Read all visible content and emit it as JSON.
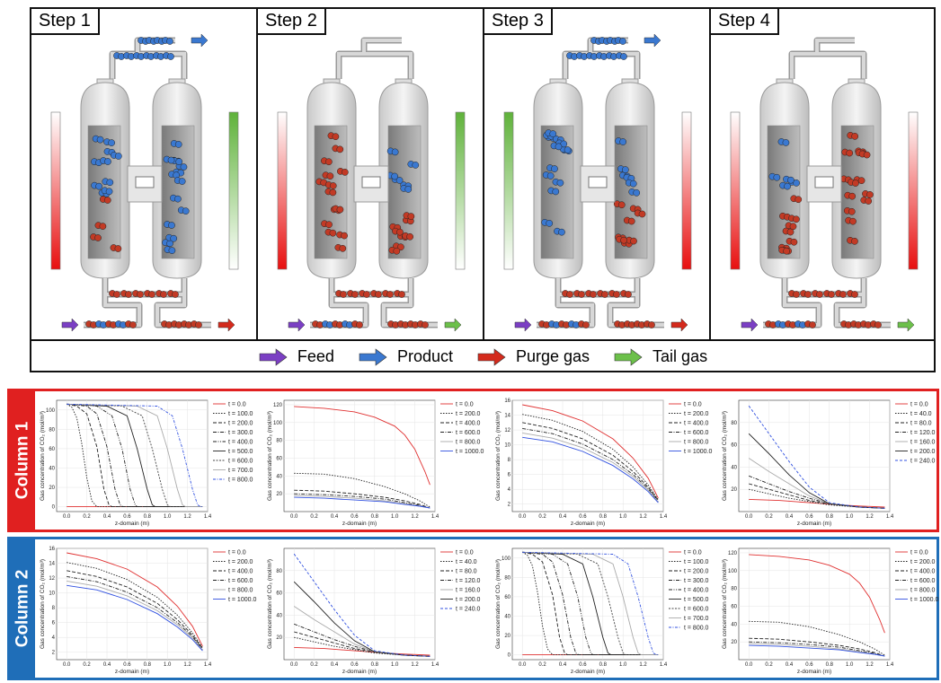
{
  "steps": [
    {
      "label": "Step 1",
      "left_bar": "red",
      "right_bar": "green",
      "product_top": true,
      "bottom_right_arrow": "red",
      "left_fill": "mixed",
      "right_fill": "blue"
    },
    {
      "label": "Step 2",
      "left_bar": "red",
      "right_bar": "green",
      "product_top": false,
      "bottom_right_arrow": "green",
      "left_fill": "red",
      "right_fill": "mixed"
    },
    {
      "label": "Step 3",
      "left_bar": "green",
      "right_bar": "red",
      "product_top": true,
      "bottom_right_arrow": "red",
      "left_fill": "blue",
      "right_fill": "mixed"
    },
    {
      "label": "Step 4",
      "left_bar": "red",
      "right_bar": "red",
      "product_top": false,
      "bottom_right_arrow": "green",
      "left_fill": "mixed",
      "right_fill": "red"
    }
  ],
  "legend": [
    {
      "label": "Feed",
      "color": "#7b3fc4"
    },
    {
      "label": "Product",
      "color": "#3a78d0"
    },
    {
      "label": "Purge gas",
      "color": "#d42a1c"
    },
    {
      "label": "Tail gas",
      "color": "#6cc04a"
    }
  ],
  "columns": [
    {
      "label": "Column 1",
      "color": "#e02020",
      "plots": [
        "p_breakthrough",
        "p_purge_high",
        "p_decay_low",
        "p_desorb"
      ]
    },
    {
      "label": "Column 2",
      "color": "#1f6eb8",
      "plots": [
        "p_decay_low",
        "p_desorb",
        "p_breakthrough",
        "p_purge_high"
      ]
    }
  ],
  "chart_data": [
    {
      "id": "p_breakthrough",
      "type": "line",
      "xlabel": "z-domain (m)",
      "ylabel": "Gas concentration of CO₂ (mol/m³)",
      "xlim": [
        -0.1,
        1.4
      ],
      "ylim": [
        -5,
        110
      ],
      "xticks": [
        0.0,
        0.2,
        0.4,
        0.6,
        0.8,
        1.0,
        1.2,
        1.4
      ],
      "yticks": [
        0,
        20,
        40,
        60,
        80,
        100
      ],
      "series": [
        {
          "name": "t = 0.0",
          "style": "red",
          "points": [
            [
              0,
              0
            ],
            [
              1.35,
              0
            ]
          ]
        },
        {
          "name": "t = 100.0",
          "style": "dotted",
          "points": [
            [
              0,
              106
            ],
            [
              0.05,
              103
            ],
            [
              0.1,
              92
            ],
            [
              0.15,
              65
            ],
            [
              0.2,
              30
            ],
            [
              0.25,
              6
            ],
            [
              0.3,
              0
            ],
            [
              1.35,
              0
            ]
          ]
        },
        {
          "name": "t = 200.0",
          "style": "dashed",
          "points": [
            [
              0,
              106
            ],
            [
              0.1,
              104
            ],
            [
              0.2,
              96
            ],
            [
              0.3,
              62
            ],
            [
              0.37,
              18
            ],
            [
              0.42,
              2
            ],
            [
              0.45,
              0
            ],
            [
              1.35,
              0
            ]
          ]
        },
        {
          "name": "t = 300.0",
          "style": "dashdot",
          "points": [
            [
              0,
              106
            ],
            [
              0.2,
              104
            ],
            [
              0.3,
              96
            ],
            [
              0.4,
              62
            ],
            [
              0.48,
              18
            ],
            [
              0.53,
              2
            ],
            [
              0.56,
              0
            ],
            [
              1.35,
              0
            ]
          ]
        },
        {
          "name": "t = 400.0",
          "style": "dashdotdot",
          "points": [
            [
              0,
              106
            ],
            [
              0.3,
              104
            ],
            [
              0.45,
              94
            ],
            [
              0.55,
              60
            ],
            [
              0.63,
              18
            ],
            [
              0.68,
              2
            ],
            [
              0.7,
              0
            ],
            [
              1.35,
              0
            ]
          ]
        },
        {
          "name": "t = 500.0",
          "style": "black",
          "points": [
            [
              0,
              106
            ],
            [
              0.4,
              104
            ],
            [
              0.6,
              94
            ],
            [
              0.7,
              60
            ],
            [
              0.8,
              18
            ],
            [
              0.85,
              2
            ],
            [
              0.88,
              0
            ],
            [
              1.35,
              0
            ]
          ]
        },
        {
          "name": "t = 600.0",
          "style": "dashed-fine",
          "points": [
            [
              0,
              106
            ],
            [
              0.55,
              104
            ],
            [
              0.75,
              94
            ],
            [
              0.85,
              60
            ],
            [
              0.95,
              18
            ],
            [
              1.0,
              2
            ],
            [
              1.03,
              0
            ],
            [
              1.35,
              0
            ]
          ]
        },
        {
          "name": "t = 700.0",
          "style": "gray",
          "points": [
            [
              0,
              106
            ],
            [
              0.7,
              104
            ],
            [
              0.9,
              94
            ],
            [
              1.0,
              60
            ],
            [
              1.1,
              18
            ],
            [
              1.15,
              2
            ],
            [
              1.18,
              0
            ],
            [
              1.35,
              0
            ]
          ]
        },
        {
          "name": "t = 800.0",
          "style": "blue-dashdot",
          "points": [
            [
              0,
              106
            ],
            [
              0.9,
              104
            ],
            [
              1.05,
              94
            ],
            [
              1.15,
              60
            ],
            [
              1.25,
              18
            ],
            [
              1.3,
              2
            ],
            [
              1.33,
              0
            ],
            [
              1.35,
              0
            ]
          ]
        }
      ]
    },
    {
      "id": "p_purge_high",
      "type": "line",
      "xlabel": "z-domain (m)",
      "ylabel": "Gas concentration of CO₂ (mol/m³)",
      "xlim": [
        -0.1,
        1.4
      ],
      "ylim": [
        0,
        125
      ],
      "xticks": [
        0.0,
        0.2,
        0.4,
        0.6,
        0.8,
        1.0,
        1.2,
        1.4
      ],
      "yticks": [
        20,
        40,
        60,
        80,
        100,
        120
      ],
      "series": [
        {
          "name": "t = 0.0",
          "style": "red",
          "points": [
            [
              0,
              118
            ],
            [
              0.3,
              116
            ],
            [
              0.6,
              112
            ],
            [
              0.8,
              106
            ],
            [
              1.0,
              96
            ],
            [
              1.1,
              86
            ],
            [
              1.2,
              70
            ],
            [
              1.3,
              45
            ],
            [
              1.35,
              30
            ]
          ]
        },
        {
          "name": "t = 200.0",
          "style": "dotted",
          "points": [
            [
              0,
              43
            ],
            [
              0.3,
              42
            ],
            [
              0.6,
              37
            ],
            [
              0.9,
              28
            ],
            [
              1.1,
              20
            ],
            [
              1.25,
              12
            ],
            [
              1.35,
              5
            ]
          ]
        },
        {
          "name": "t = 400.0",
          "style": "dashed",
          "points": [
            [
              0,
              24
            ],
            [
              0.3,
              23
            ],
            [
              0.6,
              20
            ],
            [
              0.9,
              16
            ],
            [
              1.1,
              12
            ],
            [
              1.25,
              8
            ],
            [
              1.35,
              4
            ]
          ]
        },
        {
          "name": "t = 600.0",
          "style": "dashdot",
          "points": [
            [
              0,
              20
            ],
            [
              0.3,
              19
            ],
            [
              0.6,
              17
            ],
            [
              0.9,
              14
            ],
            [
              1.1,
              10
            ],
            [
              1.25,
              7
            ],
            [
              1.35,
              4
            ]
          ]
        },
        {
          "name": "t = 800.0",
          "style": "gray",
          "points": [
            [
              0,
              18
            ],
            [
              0.3,
              17
            ],
            [
              0.6,
              15
            ],
            [
              0.9,
              12
            ],
            [
              1.1,
              9
            ],
            [
              1.25,
              6
            ],
            [
              1.35,
              4
            ]
          ]
        },
        {
          "name": "t = 1000.0",
          "style": "blue",
          "points": [
            [
              0,
              16
            ],
            [
              0.3,
              15
            ],
            [
              0.6,
              13
            ],
            [
              0.9,
              11
            ],
            [
              1.1,
              8
            ],
            [
              1.25,
              6
            ],
            [
              1.35,
              4
            ]
          ]
        }
      ]
    },
    {
      "id": "p_decay_low",
      "type": "line",
      "xlabel": "z-domain (m)",
      "ylabel": "Gas concentration of CO₂ (mol/m³)",
      "xlim": [
        -0.1,
        1.4
      ],
      "ylim": [
        1,
        16
      ],
      "xticks": [
        0.0,
        0.2,
        0.4,
        0.6,
        0.8,
        1.0,
        1.2,
        1.4
      ],
      "yticks": [
        2,
        4,
        6,
        8,
        10,
        12,
        14,
        16
      ],
      "series": [
        {
          "name": "t = 0.0",
          "style": "red",
          "points": [
            [
              0,
              15.4
            ],
            [
              0.3,
              14.6
            ],
            [
              0.6,
              13.2
            ],
            [
              0.9,
              10.8
            ],
            [
              1.1,
              8.2
            ],
            [
              1.25,
              5.5
            ],
            [
              1.35,
              2.8
            ]
          ]
        },
        {
          "name": "t = 200.0",
          "style": "dotted",
          "points": [
            [
              0,
              14.1
            ],
            [
              0.3,
              13.3
            ],
            [
              0.6,
              11.8
            ],
            [
              0.9,
              9.4
            ],
            [
              1.1,
              7.0
            ],
            [
              1.25,
              4.6
            ],
            [
              1.35,
              2.6
            ]
          ]
        },
        {
          "name": "t = 400.0",
          "style": "dashed",
          "points": [
            [
              0,
              13.0
            ],
            [
              0.3,
              12.2
            ],
            [
              0.6,
              10.8
            ],
            [
              0.9,
              8.6
            ],
            [
              1.1,
              6.4
            ],
            [
              1.25,
              4.3
            ],
            [
              1.35,
              2.5
            ]
          ]
        },
        {
          "name": "t = 600.0",
          "style": "dashdot",
          "points": [
            [
              0,
              12.2
            ],
            [
              0.3,
              11.5
            ],
            [
              0.6,
              10.1
            ],
            [
              0.9,
              8.0
            ],
            [
              1.1,
              6.0
            ],
            [
              1.25,
              4.1
            ],
            [
              1.35,
              2.4
            ]
          ]
        },
        {
          "name": "t = 800.0",
          "style": "gray",
          "points": [
            [
              0,
              11.6
            ],
            [
              0.3,
              10.9
            ],
            [
              0.6,
              9.6
            ],
            [
              0.9,
              7.6
            ],
            [
              1.1,
              5.7
            ],
            [
              1.25,
              3.9
            ],
            [
              1.35,
              2.3
            ]
          ]
        },
        {
          "name": "t = 1000.0",
          "style": "blue",
          "points": [
            [
              0,
              11.0
            ],
            [
              0.3,
              10.4
            ],
            [
              0.6,
              9.1
            ],
            [
              0.9,
              7.2
            ],
            [
              1.1,
              5.4
            ],
            [
              1.25,
              3.7
            ],
            [
              1.35,
              2.2
            ]
          ]
        }
      ]
    },
    {
      "id": "p_desorb",
      "type": "line",
      "xlabel": "z-domain (m)",
      "ylabel": "Gas concentration of CO₂ (mol/m³)",
      "xlim": [
        -0.1,
        1.4
      ],
      "ylim": [
        0,
        100
      ],
      "xticks": [
        0.0,
        0.2,
        0.4,
        0.6,
        0.8,
        1.0,
        1.2,
        1.4
      ],
      "yticks": [
        20,
        40,
        60,
        80
      ],
      "series": [
        {
          "name": "t = 0.0",
          "style": "red",
          "points": [
            [
              0,
              11
            ],
            [
              0.3,
              10
            ],
            [
              0.6,
              8
            ],
            [
              0.9,
              6
            ],
            [
              1.1,
              5
            ],
            [
              1.35,
              4
            ]
          ]
        },
        {
          "name": "t = 40.0",
          "style": "dotted",
          "points": [
            [
              0,
              20
            ],
            [
              0.2,
              16
            ],
            [
              0.4,
              12
            ],
            [
              0.6,
              9
            ],
            [
              0.8,
              6
            ],
            [
              1.1,
              4
            ],
            [
              1.35,
              3
            ]
          ]
        },
        {
          "name": "t = 80.0",
          "style": "dashed",
          "points": [
            [
              0,
              25
            ],
            [
              0.2,
              20
            ],
            [
              0.4,
              15
            ],
            [
              0.6,
              10
            ],
            [
              0.8,
              7
            ],
            [
              1.1,
              4
            ],
            [
              1.35,
              3
            ]
          ]
        },
        {
          "name": "t = 120.0",
          "style": "dashdot",
          "points": [
            [
              0,
              32
            ],
            [
              0.2,
              25
            ],
            [
              0.4,
              18
            ],
            [
              0.6,
              12
            ],
            [
              0.8,
              7
            ],
            [
              1.1,
              4
            ],
            [
              1.35,
              3
            ]
          ]
        },
        {
          "name": "t = 160.0",
          "style": "gray",
          "points": [
            [
              0,
              48
            ],
            [
              0.2,
              36
            ],
            [
              0.4,
              25
            ],
            [
              0.6,
              14
            ],
            [
              0.8,
              7
            ],
            [
              1.1,
              4
            ],
            [
              1.35,
              3
            ]
          ]
        },
        {
          "name": "t = 200.0",
          "style": "black",
          "points": [
            [
              0,
              70
            ],
            [
              0.2,
              52
            ],
            [
              0.4,
              33
            ],
            [
              0.6,
              17
            ],
            [
              0.8,
              7
            ],
            [
              1.1,
              4
            ],
            [
              1.35,
              3
            ]
          ]
        },
        {
          "name": "t = 240.0",
          "style": "blue-dashed",
          "points": [
            [
              0,
              95
            ],
            [
              0.2,
              70
            ],
            [
              0.4,
              45
            ],
            [
              0.6,
              22
            ],
            [
              0.8,
              8
            ],
            [
              1.1,
              4
            ],
            [
              1.35,
              3
            ]
          ]
        }
      ]
    }
  ]
}
